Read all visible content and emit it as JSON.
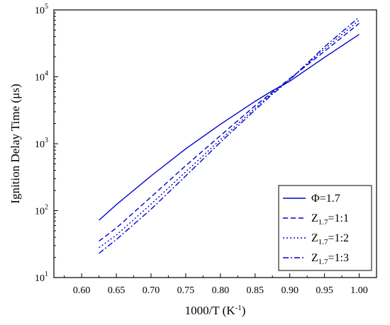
{
  "chart_data": {
    "type": "line",
    "xlabel": "1000/T (K",
    "xlabel_sup": "-1",
    "xlabel_end": ")",
    "ylabel": "Ignition Delay Time (μs)",
    "xlim": [
      0.56,
      1.025
    ],
    "ylim": [
      10,
      100000
    ],
    "yscale": "log",
    "grid": false,
    "legend_position": "bottom-right",
    "x_ticks": [
      0.6,
      0.65,
      0.7,
      0.75,
      0.8,
      0.85,
      0.9,
      0.95,
      1.0
    ],
    "x_tick_labels": [
      "0.60",
      "0.65",
      "0.70",
      "0.75",
      "0.80",
      "0.85",
      "0.90",
      "0.95",
      "1.00"
    ],
    "y_ticks": [
      {
        "value": 10,
        "base": "10",
        "exp": "1"
      },
      {
        "value": 100,
        "base": "10",
        "exp": "2"
      },
      {
        "value": 1000,
        "base": "10",
        "exp": "3"
      },
      {
        "value": 10000,
        "base": "10",
        "exp": "4"
      },
      {
        "value": 100000,
        "base": "10",
        "exp": "5"
      }
    ],
    "series": [
      {
        "name": "Φ=1.7",
        "label_main": "Φ=1.7",
        "label_sub": "",
        "label_tail": "",
        "dash": "solid",
        "color": "#0000cc",
        "x": [
          0.625,
          0.65,
          0.7,
          0.75,
          0.8,
          0.85,
          0.875,
          0.9,
          0.95,
          1.0
        ],
        "y": [
          72,
          123,
          330,
          840,
          1950,
          4300,
          6200,
          8600,
          19500,
          43000
        ]
      },
      {
        "name": "Z1.7=1:1",
        "label_main": "Z",
        "label_sub": "1.7",
        "label_tail": "=1:1",
        "dash": "dashed",
        "color": "#0000cc",
        "x": [
          0.625,
          0.65,
          0.7,
          0.75,
          0.8,
          0.85,
          0.875,
          0.9,
          0.95,
          1.0
        ],
        "y": [
          35,
          55,
          160,
          470,
          1320,
          3700,
          5900,
          9400,
          24000,
          63000
        ]
      },
      {
        "name": "Z1.7=1:2",
        "label_main": "Z",
        "label_sub": "1.7",
        "label_tail": "=1:2",
        "dash": "dotted",
        "color": "#0000cc",
        "x": [
          0.625,
          0.65,
          0.7,
          0.75,
          0.8,
          0.85,
          0.875,
          0.9,
          0.95,
          1.0
        ],
        "y": [
          28,
          43,
          125,
          380,
          1150,
          3400,
          5700,
          9200,
          26000,
          70000
        ]
      },
      {
        "name": "Z1.7=1:3",
        "label_main": "Z",
        "label_sub": "1.7",
        "label_tail": "=1:3",
        "dash": "dashdot",
        "color": "#0000cc",
        "x": [
          0.625,
          0.65,
          0.7,
          0.75,
          0.8,
          0.85,
          0.875,
          0.9,
          0.95,
          1.0
        ],
        "y": [
          23,
          37,
          105,
          330,
          1050,
          3200,
          5500,
          9000,
          28000,
          78000
        ]
      }
    ]
  }
}
